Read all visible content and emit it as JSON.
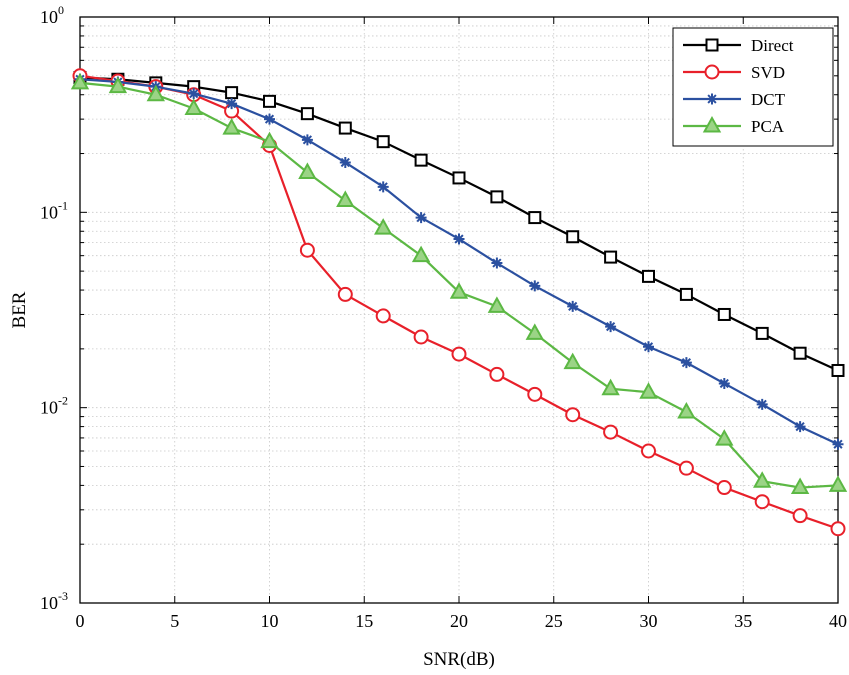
{
  "chart_data": {
    "type": "line",
    "xlabel": "SNR(dB)",
    "ylabel": "BER",
    "xlim": [
      0,
      40
    ],
    "ylim": [
      0.001,
      1
    ],
    "yscale": "log",
    "grid": true,
    "legend_position": "top-right",
    "x_ticks": [
      {
        "value": 0,
        "label": "0"
      },
      {
        "value": 5,
        "label": "5"
      },
      {
        "value": 10,
        "label": "10"
      },
      {
        "value": 15,
        "label": "15"
      },
      {
        "value": 20,
        "label": "20"
      },
      {
        "value": 25,
        "label": "25"
      },
      {
        "value": 30,
        "label": "30"
      },
      {
        "value": 35,
        "label": "35"
      },
      {
        "value": 40,
        "label": "40"
      }
    ],
    "y_ticks": [
      {
        "value": 1,
        "base": "10",
        "exponent": "0"
      },
      {
        "value": 0.1,
        "base": "10",
        "exponent": "-1"
      },
      {
        "value": 0.01,
        "base": "10",
        "exponent": "-2"
      },
      {
        "value": 0.001,
        "base": "10",
        "exponent": "-3"
      }
    ],
    "x": [
      0,
      2,
      4,
      6,
      8,
      10,
      12,
      14,
      16,
      18,
      20,
      22,
      24,
      26,
      28,
      30,
      32,
      34,
      36,
      38,
      40
    ],
    "series": [
      {
        "name": "Direct",
        "color": "#000000",
        "marker": "square",
        "values": [
          0.49,
          0.48,
          0.46,
          0.44,
          0.41,
          0.37,
          0.32,
          0.27,
          0.23,
          0.185,
          0.15,
          0.12,
          0.094,
          0.075,
          0.059,
          0.047,
          0.038,
          0.03,
          0.024,
          0.019,
          0.0155
        ]
      },
      {
        "name": "SVD",
        "color": "#e8202a",
        "marker": "circle",
        "values": [
          0.5,
          0.47,
          0.44,
          0.4,
          0.33,
          0.22,
          0.064,
          0.038,
          0.0295,
          0.023,
          0.0188,
          0.0148,
          0.0117,
          0.0092,
          0.0075,
          0.006,
          0.0049,
          0.0039,
          0.0033,
          0.0028,
          0.0024
        ]
      },
      {
        "name": "DCT",
        "color": "#2b50a0",
        "marker": "asterisk",
        "values": [
          0.48,
          0.465,
          0.44,
          0.405,
          0.36,
          0.3,
          0.235,
          0.18,
          0.135,
          0.094,
          0.073,
          0.055,
          0.042,
          0.033,
          0.026,
          0.0205,
          0.017,
          0.0133,
          0.0104,
          0.008,
          0.0065
        ]
      },
      {
        "name": "PCA",
        "color": "#5cb844",
        "marker": "triangle",
        "values": [
          0.46,
          0.44,
          0.4,
          0.34,
          0.27,
          0.23,
          0.16,
          0.115,
          0.083,
          0.06,
          0.039,
          0.033,
          0.024,
          0.017,
          0.0125,
          0.012,
          0.0095,
          0.0069,
          0.0042,
          0.0039,
          0.004
        ]
      }
    ]
  }
}
